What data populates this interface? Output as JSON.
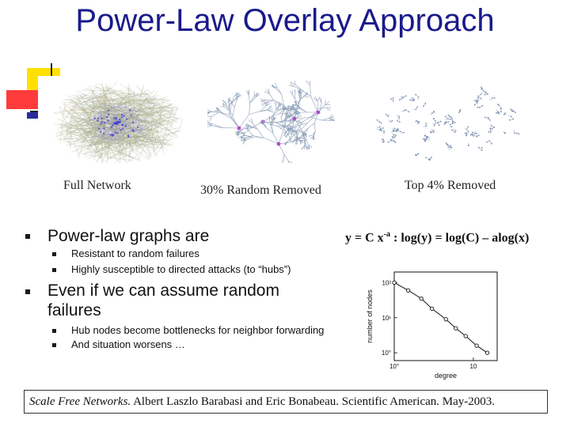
{
  "slide": {
    "title": "Power-Law Overlay Approach",
    "captions": {
      "full": "Full Network",
      "random": "30% Random Removed",
      "top": "Top 4% Removed"
    },
    "bullets": [
      {
        "text": "Power-law graphs are",
        "sub": [
          "Resistant to random failures",
          "Highly susceptible to directed attacks (to “hubs”)"
        ]
      },
      {
        "text": "Even if we can assume random failures",
        "sub": [
          "Hub nodes become bottlenecks for neighbor forwarding",
          "And situation worsens …"
        ]
      }
    ],
    "formula": {
      "lhs": "y = C x",
      "exp": "-a",
      "rhs": " : log(y) = log(C) – alog(x)"
    },
    "citation": {
      "italic": "Scale Free Networks.",
      "rest": " Albert Laszlo Barabasi and Eric Bonabeau. Scientific American. May-2003."
    }
  },
  "chart_data": {
    "type": "line",
    "xlabel": "degree",
    "ylabel": "number of nodes",
    "x_scale": "log",
    "y_scale": "log",
    "x_tick_labels": [
      "10°",
      "10"
    ],
    "y_tick_labels": [
      "10²",
      "10¹",
      "10°"
    ],
    "series": [
      {
        "x": [
          1,
          1.5,
          2.2,
          3,
          4.5,
          6,
          8,
          11,
          15
        ],
        "y": [
          100,
          60,
          35,
          18,
          9,
          5,
          3,
          1.6,
          1
        ]
      }
    ]
  },
  "colors": {
    "title": "#1a1a8c",
    "deco_yellow": "#ffe000",
    "deco_red": "#ff3b3b",
    "deco_blue": "#2b2b9c"
  }
}
